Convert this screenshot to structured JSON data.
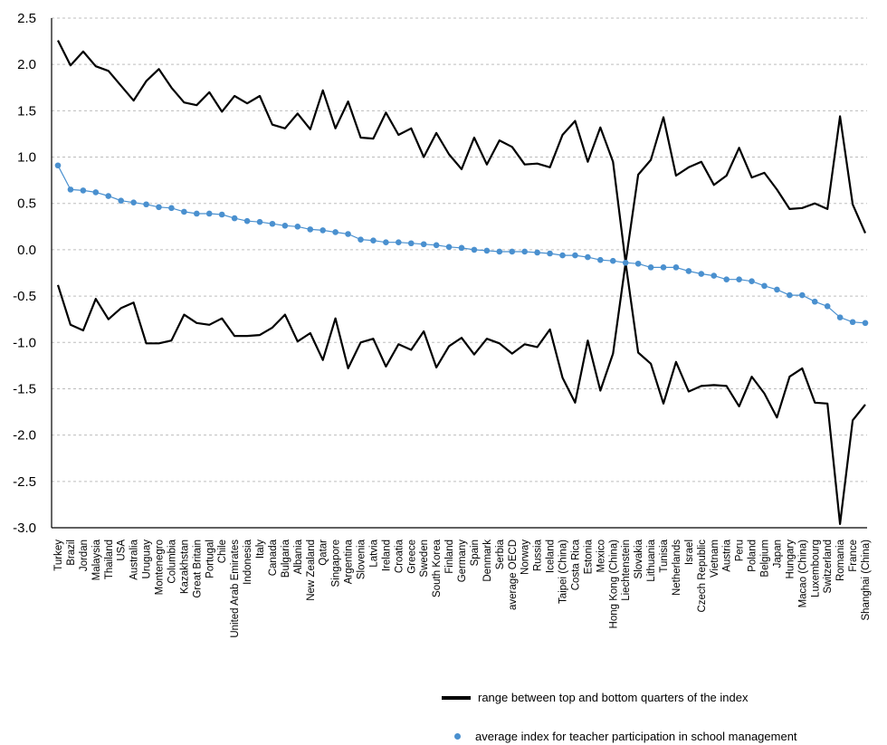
{
  "chart_data": {
    "type": "line",
    "title": "",
    "xlabel": "",
    "ylabel": "",
    "ylim": [
      -3.0,
      2.5
    ],
    "yticks": [
      "2.5",
      "2.0",
      "1.5",
      "1.0",
      "0.5",
      "0.0",
      "-0.5",
      "-1.0",
      "-1.5",
      "-2.0",
      "-2.5",
      "-3.0"
    ],
    "grid": true,
    "legend_position": "bottom-right",
    "colors": {
      "range": "#000000",
      "average": "#4a90cf"
    },
    "categories": [
      "Turkey",
      "Brazil",
      "Jordan",
      "Malaysia",
      "Thailand",
      "USA",
      "Australia",
      "Uruguay",
      "Montenegro",
      "Columbia",
      "Kazakhstan",
      "Great Britain",
      "Portugal",
      "Chile",
      "United Arab Emirates",
      "Indonesia",
      "Italy",
      "Canada",
      "Bulgaria",
      "Albania",
      "New Zealand",
      "Qatar",
      "Singapore",
      "Argentina",
      "Slovenia",
      "Latvia",
      "Ireland",
      "Croatia",
      "Greece",
      "Sweden",
      "South Korea",
      "Finland",
      "Germany",
      "Spain",
      "Denmark",
      "Serbia",
      "average OECD",
      "Norway",
      "Russia",
      "Iceland",
      "Taipei (China)",
      "Costa Rica",
      "Estonia",
      "Mexico",
      "Hong Kong (China)",
      "Liechtenstein",
      "Slovakia",
      "Lithuania",
      "Tunisia",
      "Netherlands",
      "Israel",
      "Czech Republic",
      "Vietnam",
      "Austria",
      "Peru",
      "Poland",
      "Belgium",
      "Japan",
      "Hungary",
      "Macao (China)",
      "Luxembourg",
      "Switzerland",
      "Romania",
      "France",
      "Shanghai (China)"
    ],
    "series": [
      {
        "name": "range between top and bottom quarters of the index",
        "kind": "upper",
        "values": [
          2.26,
          1.99,
          2.14,
          1.98,
          1.93,
          1.77,
          1.61,
          1.82,
          1.95,
          1.75,
          1.59,
          1.56,
          1.7,
          1.49,
          1.66,
          1.58,
          1.66,
          1.35,
          1.31,
          1.47,
          1.3,
          1.72,
          1.31,
          1.6,
          1.21,
          1.2,
          1.48,
          1.24,
          1.31,
          1.0,
          1.26,
          1.03,
          0.87,
          1.21,
          0.92,
          1.18,
          1.11,
          0.92,
          0.93,
          0.89,
          1.24,
          1.39,
          0.95,
          1.32,
          0.95,
          -0.14,
          0.81,
          0.97,
          1.43,
          0.8,
          0.89,
          0.95,
          0.7,
          0.8,
          1.1,
          0.78,
          0.83,
          0.65,
          0.44,
          0.45,
          0.5,
          0.44,
          1.44,
          0.49,
          0.18
        ]
      },
      {
        "name": "",
        "kind": "lower",
        "values": [
          -0.38,
          -0.81,
          -0.87,
          -0.53,
          -0.75,
          -0.63,
          -0.57,
          -1.01,
          -1.01,
          -0.98,
          -0.7,
          -0.79,
          -0.81,
          -0.74,
          -0.93,
          -0.93,
          -0.92,
          -0.84,
          -0.7,
          -0.99,
          -0.9,
          -1.19,
          -0.74,
          -1.28,
          -1.0,
          -0.96,
          -1.26,
          -1.02,
          -1.08,
          -0.88,
          -1.27,
          -1.04,
          -0.95,
          -1.13,
          -0.96,
          -1.01,
          -1.12,
          -1.02,
          -1.05,
          -0.86,
          -1.38,
          -1.65,
          -0.98,
          -1.52,
          -1.12,
          -0.14,
          -1.11,
          -1.23,
          -1.66,
          -1.21,
          -1.53,
          -1.47,
          -1.46,
          -1.47,
          -1.69,
          -1.37,
          -1.55,
          -1.81,
          -1.37,
          -1.28,
          -1.65,
          -1.66,
          -2.96,
          -1.84,
          -1.67
        ]
      },
      {
        "name": "average index for teacher participation in school management",
        "kind": "average",
        "values": [
          0.91,
          0.65,
          0.64,
          0.62,
          0.58,
          0.53,
          0.51,
          0.49,
          0.46,
          0.45,
          0.41,
          0.39,
          0.39,
          0.38,
          0.34,
          0.31,
          0.3,
          0.28,
          0.26,
          0.25,
          0.22,
          0.21,
          0.19,
          0.17,
          0.11,
          0.1,
          0.08,
          0.08,
          0.07,
          0.06,
          0.05,
          0.03,
          0.02,
          0.0,
          -0.01,
          -0.02,
          -0.02,
          -0.02,
          -0.03,
          -0.04,
          -0.06,
          -0.06,
          -0.08,
          -0.11,
          -0.12,
          -0.14,
          -0.15,
          -0.19,
          -0.19,
          -0.19,
          -0.23,
          -0.26,
          -0.28,
          -0.32,
          -0.32,
          -0.34,
          -0.39,
          -0.43,
          -0.49,
          -0.49,
          -0.56,
          -0.61,
          -0.73,
          -0.78,
          -0.79
        ]
      }
    ]
  },
  "legend": {
    "range_label": "range between top and bottom quarters of the index",
    "average_label": "average index for teacher participation in school management"
  }
}
